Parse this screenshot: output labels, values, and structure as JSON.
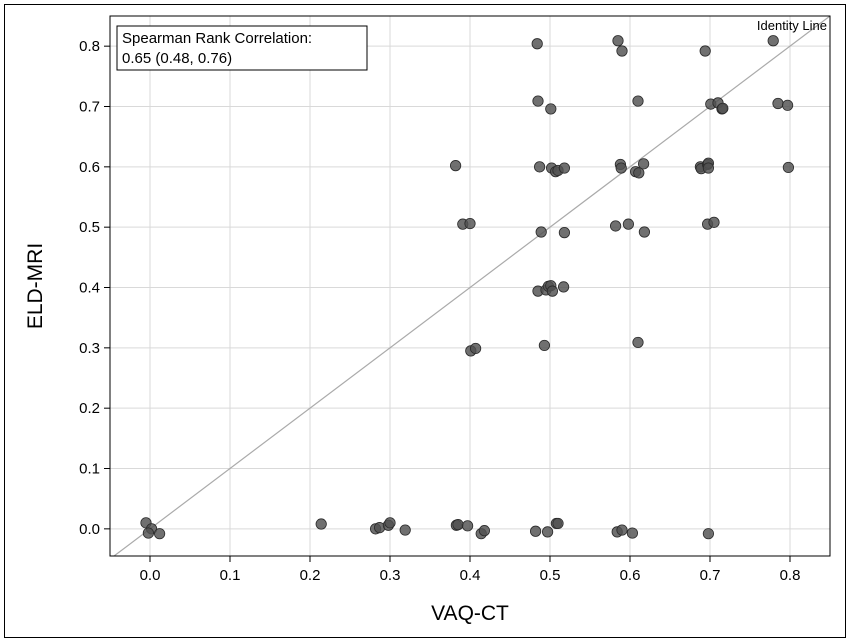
{
  "chart_data": {
    "type": "scatter",
    "xlabel": "VAQ-CT",
    "ylabel": "ELD-MRI",
    "xlim": [
      -0.05,
      0.85
    ],
    "ylim": [
      -0.045,
      0.85
    ],
    "xticks": [
      "0.0",
      "0.1",
      "0.2",
      "0.3",
      "0.4",
      "0.5",
      "0.6",
      "0.7",
      "0.8"
    ],
    "xtick_values": [
      0.0,
      0.1,
      0.2,
      0.3,
      0.4,
      0.5,
      0.6,
      0.7,
      0.8
    ],
    "yticks": [
      "0.0",
      "0.1",
      "0.2",
      "0.3",
      "0.4",
      "0.5",
      "0.6",
      "0.7",
      "0.8"
    ],
    "ytick_values": [
      0.0,
      0.1,
      0.2,
      0.3,
      0.4,
      0.5,
      0.6,
      0.7,
      0.8
    ],
    "grid": true,
    "annotation": {
      "line1": "Spearman Rank Correlation:",
      "line2": "0.65 (0.48, 0.76)"
    },
    "identity_line_label": "Identity Line",
    "colors": {
      "point": "#505050",
      "grid": "#d9d9d9",
      "identity": "#aaaaaa"
    },
    "points": [
      [
        -0.005,
        0.01
      ],
      [
        0.002,
        0.0
      ],
      [
        -0.002,
        -0.007
      ],
      [
        0.012,
        -0.008
      ],
      [
        0.214,
        0.008
      ],
      [
        0.282,
        0.0
      ],
      [
        0.287,
        0.002
      ],
      [
        0.298,
        0.006
      ],
      [
        0.3,
        0.01
      ],
      [
        0.319,
        -0.002
      ],
      [
        0.383,
        0.006
      ],
      [
        0.385,
        0.007
      ],
      [
        0.397,
        0.005
      ],
      [
        0.414,
        -0.008
      ],
      [
        0.418,
        -0.003
      ],
      [
        0.482,
        -0.004
      ],
      [
        0.497,
        -0.005
      ],
      [
        0.508,
        0.009
      ],
      [
        0.51,
        0.009
      ],
      [
        0.584,
        -0.005
      ],
      [
        0.59,
        -0.002
      ],
      [
        0.603,
        -0.007
      ],
      [
        0.698,
        -0.008
      ],
      [
        0.382,
        0.602
      ],
      [
        0.391,
        0.505
      ],
      [
        0.4,
        0.506
      ],
      [
        0.401,
        0.295
      ],
      [
        0.407,
        0.299
      ],
      [
        0.484,
        0.804
      ],
      [
        0.485,
        0.709
      ],
      [
        0.487,
        0.6
      ],
      [
        0.489,
        0.492
      ],
      [
        0.485,
        0.394
      ],
      [
        0.493,
        0.304
      ],
      [
        0.495,
        0.396
      ],
      [
        0.498,
        0.402
      ],
      [
        0.501,
        0.403
      ],
      [
        0.503,
        0.394
      ],
      [
        0.501,
        0.696
      ],
      [
        0.502,
        0.598
      ],
      [
        0.507,
        0.592
      ],
      [
        0.51,
        0.594
      ],
      [
        0.518,
        0.598
      ],
      [
        0.518,
        0.491
      ],
      [
        0.517,
        0.401
      ],
      [
        0.585,
        0.809
      ],
      [
        0.59,
        0.792
      ],
      [
        0.582,
        0.502
      ],
      [
        0.588,
        0.604
      ],
      [
        0.589,
        0.598
      ],
      [
        0.598,
        0.505
      ],
      [
        0.607,
        0.592
      ],
      [
        0.611,
        0.59
      ],
      [
        0.61,
        0.709
      ],
      [
        0.61,
        0.309
      ],
      [
        0.617,
        0.605
      ],
      [
        0.618,
        0.492
      ],
      [
        0.688,
        0.6
      ],
      [
        0.689,
        0.597
      ],
      [
        0.694,
        0.792
      ],
      [
        0.697,
        0.604
      ],
      [
        0.698,
        0.606
      ],
      [
        0.698,
        0.598
      ],
      [
        0.701,
        0.704
      ],
      [
        0.697,
        0.505
      ],
      [
        0.705,
        0.508
      ],
      [
        0.71,
        0.706
      ],
      [
        0.715,
        0.696
      ],
      [
        0.716,
        0.697
      ],
      [
        0.779,
        0.809
      ],
      [
        0.785,
        0.705
      ],
      [
        0.797,
        0.702
      ],
      [
        0.798,
        0.599
      ]
    ]
  }
}
